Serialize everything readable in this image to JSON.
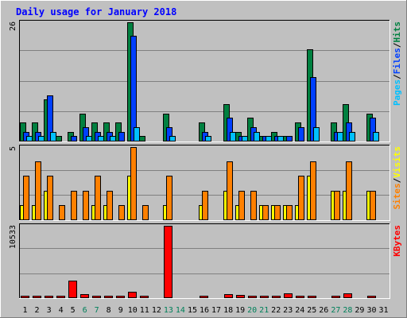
{
  "chart_data": {
    "type": "bar",
    "title": "Daily usage for January 2018",
    "days": [
      1,
      2,
      3,
      4,
      5,
      6,
      7,
      8,
      9,
      10,
      11,
      12,
      13,
      14,
      15,
      16,
      17,
      18,
      19,
      20,
      21,
      22,
      23,
      24,
      25,
      26,
      27,
      28,
      29,
      30,
      31
    ],
    "weekend_days": [
      6,
      7,
      13,
      14,
      20,
      21,
      27,
      28
    ],
    "panels": {
      "hits_files_pages": {
        "ymax_label": "26",
        "ymax": 26,
        "series": [
          {
            "name": "Hits",
            "color": "#008040",
            "values": [
              4,
              4,
              9,
              1,
              2,
              6,
              4,
              4,
              4,
              26,
              1,
              0,
              6,
              0,
              0,
              4,
              0,
              8,
              2,
              5,
              1,
              2,
              1,
              4,
              20,
              0,
              4,
              8,
              0,
              6,
              0
            ]
          },
          {
            "name": "Files",
            "color": "#0040ff",
            "values": [
              2,
              2,
              10,
              0,
              1,
              3,
              2,
              2,
              2,
              23,
              0,
              0,
              3,
              0,
              0,
              2,
              0,
              5,
              1,
              3,
              1,
              1,
              1,
              3,
              14,
              0,
              2,
              4,
              0,
              5,
              0
            ]
          },
          {
            "name": "Pages",
            "color": "#00c0ff",
            "values": [
              1,
              1,
              2,
              0,
              0,
              1,
              1,
              1,
              0,
              3,
              0,
              0,
              1,
              0,
              0,
              1,
              0,
              2,
              1,
              2,
              1,
              1,
              0,
              0,
              3,
              0,
              2,
              2,
              0,
              2,
              0
            ]
          }
        ],
        "legend": [
          {
            "name": "Pages",
            "color": "#00c0ff"
          },
          {
            "name": "/",
            "color": "#000000"
          },
          {
            "name": "Files",
            "color": "#0040ff"
          },
          {
            "name": "/",
            "color": "#000000"
          },
          {
            "name": "Hits",
            "color": "#008040"
          }
        ]
      },
      "sites_visits": {
        "ymax_label": "5",
        "ymax": 5,
        "series": [
          {
            "name": "Visits",
            "color": "#ffff00",
            "values": [
              1,
              1,
              2,
              0,
              0,
              0,
              1,
              1,
              0,
              3,
              0,
              0,
              1,
              0,
              0,
              1,
              0,
              2,
              1,
              0,
              1,
              1,
              1,
              1,
              3,
              0,
              2,
              2,
              0,
              2,
              0
            ]
          },
          {
            "name": "Sites",
            "color": "#ff8000",
            "values": [
              3,
              4,
              3,
              1,
              2,
              2,
              3,
              2,
              1,
              5,
              1,
              0,
              3,
              0,
              0,
              2,
              0,
              4,
              2,
              2,
              1,
              1,
              1,
              3,
              4,
              0,
              2,
              4,
              0,
              2,
              0
            ]
          }
        ],
        "legend": [
          {
            "name": "Sites",
            "color": "#ff8000"
          },
          {
            "name": "/",
            "color": "#000000"
          },
          {
            "name": "Visits",
            "color": "#ffff00"
          }
        ]
      },
      "kbytes": {
        "ymax_label": "10533",
        "ymax": 10533,
        "series": [
          {
            "name": "KBytes",
            "color": "#ff0000",
            "values": [
              120,
              120,
              120,
              120,
              2400,
              500,
              120,
              120,
              120,
              800,
              120,
              0,
              10533,
              0,
              0,
              120,
              0,
              500,
              300,
              120,
              120,
              120,
              600,
              120,
              120,
              0,
              120,
              600,
              0,
              120,
              0
            ]
          }
        ],
        "legend": [
          {
            "name": "KBytes",
            "color": "#ff0000"
          }
        ]
      }
    }
  }
}
